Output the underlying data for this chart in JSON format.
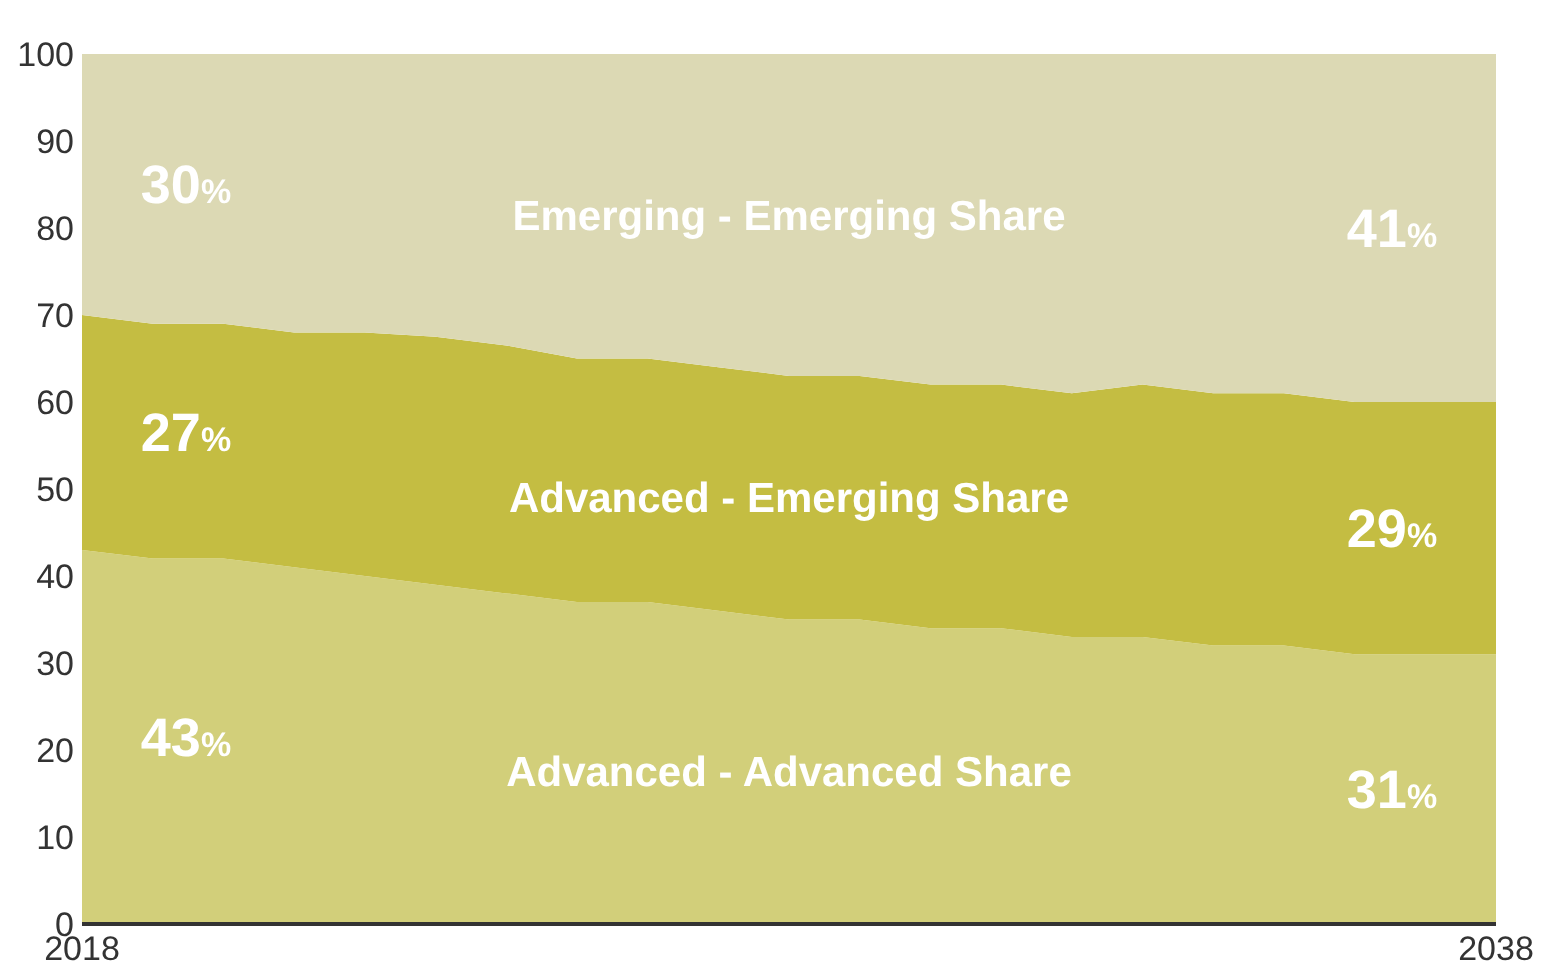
{
  "chart_data": {
    "type": "area",
    "stacked": true,
    "x": [
      2018,
      2019,
      2020,
      2021,
      2022,
      2023,
      2024,
      2025,
      2026,
      2027,
      2028,
      2029,
      2030,
      2031,
      2032,
      2033,
      2034,
      2035,
      2036,
      2037,
      2038
    ],
    "xlim": [
      2018,
      2038
    ],
    "xticks": [
      2018,
      2038
    ],
    "ylim": [
      0,
      100
    ],
    "yticks": [
      0,
      10,
      20,
      30,
      40,
      50,
      60,
      70,
      80,
      90,
      100
    ],
    "grid": false,
    "series": [
      {
        "name": "Advanced - Advanced Share",
        "color": "#d2cf7a",
        "values": [
          43,
          42,
          42,
          41,
          40,
          39,
          38,
          37,
          37,
          36,
          35,
          35,
          34,
          34,
          33,
          33,
          32,
          32,
          31,
          31,
          31
        ]
      },
      {
        "name": "Advanced - Emerging Share",
        "color": "#c4bd42",
        "values": [
          27,
          27,
          27,
          27,
          28,
          28.5,
          28.5,
          28,
          28,
          28,
          28,
          28,
          28,
          28,
          28,
          29,
          29,
          29,
          29,
          29,
          29
        ]
      },
      {
        "name": "Emerging - Emerging Share",
        "color": "#dcd9b4",
        "values": [
          30,
          31,
          31,
          32,
          32,
          32.5,
          33.5,
          35,
          35,
          36,
          37,
          37,
          38,
          38,
          39,
          38,
          39,
          39,
          40,
          40,
          40
        ]
      }
    ],
    "annotations": [
      "43%",
      "27%",
      "30%",
      "31%",
      "29%",
      "41%"
    ]
  }
}
